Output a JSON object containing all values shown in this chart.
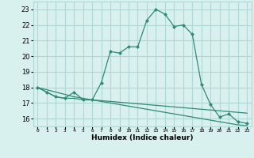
{
  "xlabel": "Humidex (Indice chaleur)",
  "x": [
    0,
    1,
    2,
    3,
    4,
    5,
    6,
    7,
    8,
    9,
    10,
    11,
    12,
    13,
    14,
    15,
    16,
    17,
    18,
    19,
    20,
    21,
    22,
    23
  ],
  "line1": [
    18.0,
    17.7,
    17.4,
    17.3,
    17.7,
    17.2,
    17.2,
    18.3,
    20.3,
    20.2,
    20.6,
    20.6,
    22.3,
    23.0,
    22.7,
    21.9,
    22.0,
    21.4,
    18.2,
    16.9,
    16.1,
    16.3,
    15.8,
    15.7
  ],
  "line2": [
    18.0,
    17.7,
    17.4,
    17.3,
    17.3,
    17.2,
    17.2,
    17.15,
    17.1,
    17.05,
    17.0,
    16.95,
    16.9,
    16.85,
    16.8,
    16.75,
    16.7,
    16.65,
    16.6,
    16.55,
    16.5,
    16.45,
    16.4,
    16.35
  ],
  "line3": [
    18.0,
    17.85,
    17.7,
    17.55,
    17.4,
    17.3,
    17.2,
    17.1,
    17.0,
    16.9,
    16.8,
    16.7,
    16.6,
    16.5,
    16.4,
    16.3,
    16.2,
    16.1,
    16.0,
    15.9,
    15.8,
    15.7,
    15.6,
    15.55
  ],
  "color": "#2e8b74",
  "bg_color": "#d8f0ee",
  "grid_color": "#b0d8d4",
  "ylim": [
    15.5,
    23.5
  ],
  "yticks": [
    16,
    17,
    18,
    19,
    20,
    21,
    22,
    23
  ],
  "xlim": [
    -0.5,
    23.5
  ]
}
